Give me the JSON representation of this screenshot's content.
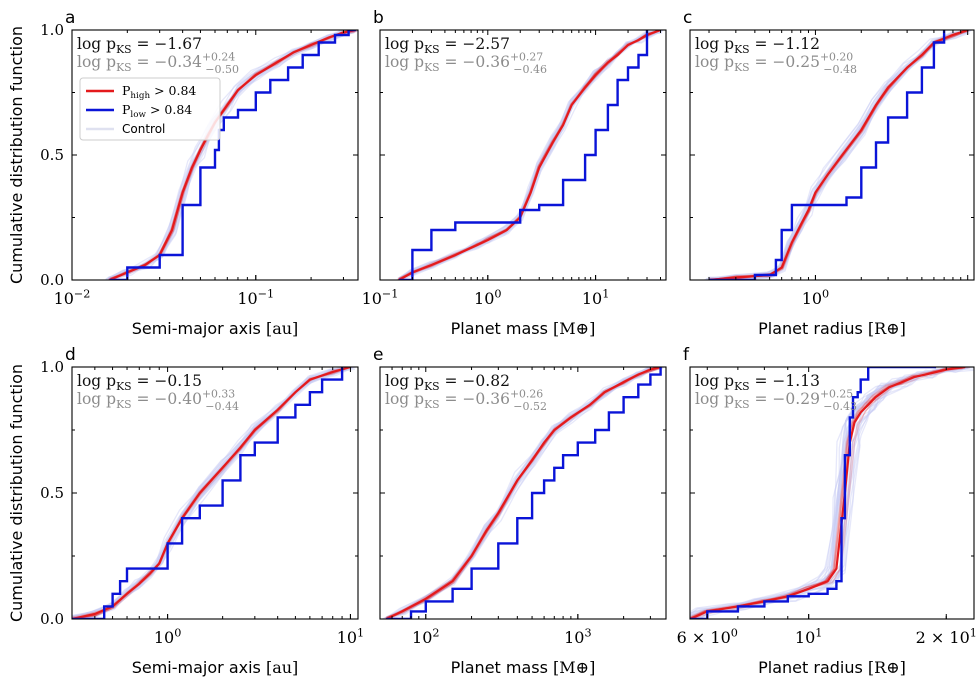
{
  "colors": {
    "high": "#e41a1c",
    "low": "#0a14d8",
    "control": "#c8cdf5",
    "pks_main": "#111111",
    "pks_ctrl": "#8c8c8c"
  },
  "legend": [
    {
      "key": "high",
      "label": "P_high > 0.84"
    },
    {
      "key": "low",
      "label": "P_low > 0.84"
    },
    {
      "key": "control",
      "label": "Control"
    }
  ],
  "chart_data": [
    {
      "panel": "a",
      "type": "line",
      "xscale": "log",
      "xlim": [
        0.01,
        0.36
      ],
      "ylim": [
        0,
        1
      ],
      "xlabel": "Semi-major axis [au]",
      "ylabel": "Cumulative distribution function",
      "xticks": [
        {
          "v": 0.01,
          "label": "10^−2"
        },
        {
          "v": 0.1,
          "label": "10^−1"
        }
      ],
      "yticks": [
        "0.0",
        "0.5",
        "1.0"
      ],
      "annot_main": {
        "label": "log p_KS = ",
        "value": "−1.67"
      },
      "annot_ctrl": {
        "label": "log p_KS = ",
        "value": "−0.34",
        "sup": "+0.24",
        "sub": "−0.50"
      },
      "legend": "upper-left",
      "series": [
        {
          "key": "high",
          "x": [
            0.016,
            0.02,
            0.025,
            0.03,
            0.035,
            0.04,
            0.045,
            0.05,
            0.055,
            0.06,
            0.07,
            0.08,
            0.1,
            0.13,
            0.16,
            0.2,
            0.25,
            0.3,
            0.35
          ],
          "y": [
            0,
            0.03,
            0.06,
            0.1,
            0.2,
            0.35,
            0.45,
            0.52,
            0.58,
            0.63,
            0.7,
            0.76,
            0.82,
            0.87,
            0.91,
            0.94,
            0.97,
            0.99,
            1.0
          ]
        },
        {
          "key": "low",
          "x": [
            0.016,
            0.02,
            0.03,
            0.04,
            0.05,
            0.06,
            0.063,
            0.067,
            0.08,
            0.1,
            0.12,
            0.15,
            0.18,
            0.22,
            0.27,
            0.32,
            0.35
          ],
          "y": [
            0,
            0.05,
            0.1,
            0.3,
            0.45,
            0.52,
            0.6,
            0.65,
            0.68,
            0.75,
            0.8,
            0.85,
            0.9,
            0.95,
            0.98,
            1.0,
            1.0
          ]
        }
      ]
    },
    {
      "panel": "b",
      "type": "line",
      "xscale": "log",
      "xlim": [
        0.1,
        45
      ],
      "ylim": [
        0,
        1
      ],
      "xlabel": "Planet mass [M⊕]",
      "ylabel": "",
      "xticks": [
        {
          "v": 0.1,
          "label": "10^−1"
        },
        {
          "v": 1,
          "label": "10^0"
        },
        {
          "v": 10,
          "label": "10^1"
        }
      ],
      "yticks": [],
      "annot_main": {
        "label": "log p_KS = ",
        "value": "−2.57"
      },
      "annot_ctrl": {
        "label": "log p_KS = ",
        "value": "−0.36",
        "sup": "+0.27",
        "sub": "−0.46"
      },
      "series": [
        {
          "key": "high",
          "x": [
            0.15,
            0.2,
            0.3,
            0.5,
            0.8,
            1.0,
            1.5,
            2.0,
            2.5,
            3.0,
            4.0,
            5.0,
            6.0,
            8.0,
            10,
            13,
            16,
            20,
            25,
            30,
            40
          ],
          "y": [
            0,
            0.03,
            0.06,
            0.1,
            0.14,
            0.16,
            0.2,
            0.25,
            0.35,
            0.45,
            0.55,
            0.62,
            0.7,
            0.77,
            0.82,
            0.87,
            0.9,
            0.94,
            0.96,
            0.98,
            1.0
          ]
        },
        {
          "key": "low",
          "x": [
            0.15,
            0.2,
            0.3,
            0.5,
            1.0,
            1.5,
            2.0,
            3.0,
            5.0,
            8.0,
            10,
            13,
            16,
            20,
            25,
            30
          ],
          "y": [
            0,
            0.12,
            0.2,
            0.23,
            0.23,
            0.23,
            0.28,
            0.3,
            0.4,
            0.5,
            0.6,
            0.7,
            0.8,
            0.85,
            0.9,
            1.0
          ]
        }
      ]
    },
    {
      "panel": "c",
      "type": "line",
      "xscale": "log",
      "xlim": [
        0.15,
        11
      ],
      "ylim": [
        0,
        1
      ],
      "xlabel": "Planet radius [R⊕]",
      "ylabel": "",
      "xticks": [
        {
          "v": 1,
          "label": "10^0"
        }
      ],
      "yticks": [],
      "annot_main": {
        "label": "log p_KS = ",
        "value": "−1.12"
      },
      "annot_ctrl": {
        "label": "log p_KS = ",
        "value": "−0.25",
        "sup": "+0.20",
        "sub": "−0.48"
      },
      "series": [
        {
          "key": "high",
          "x": [
            0.2,
            0.3,
            0.5,
            0.6,
            0.7,
            0.8,
            0.9,
            1.0,
            1.2,
            1.5,
            2.0,
            2.5,
            3.0,
            4.0,
            5.0,
            6.0,
            8.0,
            10
          ],
          "y": [
            0,
            0.01,
            0.02,
            0.05,
            0.15,
            0.22,
            0.28,
            0.35,
            0.42,
            0.5,
            0.6,
            0.7,
            0.77,
            0.85,
            0.9,
            0.95,
            0.98,
            1.0
          ]
        },
        {
          "key": "low",
          "x": [
            0.2,
            0.4,
            0.55,
            0.6,
            0.7,
            0.8,
            1.0,
            1.3,
            1.6,
            2.0,
            2.5,
            3.0,
            4.0,
            5.0,
            6.0,
            7.0
          ],
          "y": [
            0,
            0.02,
            0.08,
            0.2,
            0.3,
            0.3,
            0.3,
            0.3,
            0.33,
            0.45,
            0.55,
            0.65,
            0.75,
            0.85,
            0.95,
            1.0
          ]
        }
      ]
    },
    {
      "panel": "d",
      "type": "line",
      "xscale": "log",
      "xlim": [
        0.3,
        11
      ],
      "ylim": [
        0,
        1
      ],
      "xlabel": "Semi-major axis [au]",
      "ylabel": "Cumulative distribution function",
      "xticks": [
        {
          "v": 1,
          "label": "10^0"
        },
        {
          "v": 10,
          "label": "10^1"
        }
      ],
      "yticks": [
        "0.0",
        "0.5",
        "1.0"
      ],
      "annot_main": {
        "label": "log p_KS = ",
        "value": "−0.15"
      },
      "annot_ctrl": {
        "label": "log p_KS = ",
        "value": "−0.40",
        "sup": "+0.33",
        "sub": "−0.44"
      },
      "series": [
        {
          "key": "high",
          "x": [
            0.3,
            0.4,
            0.5,
            0.6,
            0.7,
            0.8,
            0.9,
            1.0,
            1.2,
            1.5,
            2.0,
            2.5,
            3.0,
            4.0,
            5.0,
            6.0,
            8.0,
            10
          ],
          "y": [
            0,
            0.02,
            0.05,
            0.1,
            0.14,
            0.18,
            0.22,
            0.3,
            0.4,
            0.5,
            0.6,
            0.68,
            0.75,
            0.83,
            0.9,
            0.95,
            0.98,
            1.0
          ]
        },
        {
          "key": "low",
          "x": [
            0.3,
            0.45,
            0.5,
            0.55,
            0.6,
            0.65,
            0.9,
            1.0,
            1.2,
            1.5,
            2.0,
            2.5,
            3.0,
            4.0,
            5.0,
            6.0,
            7.0,
            9.0
          ],
          "y": [
            0,
            0.05,
            0.1,
            0.15,
            0.2,
            0.2,
            0.2,
            0.3,
            0.4,
            0.45,
            0.55,
            0.65,
            0.7,
            0.8,
            0.85,
            0.9,
            0.95,
            1.0
          ]
        }
      ]
    },
    {
      "panel": "e",
      "type": "line",
      "xscale": "log",
      "xlim": [
        50,
        3800
      ],
      "ylim": [
        0,
        1
      ],
      "xlabel": "Planet mass [M⊕]",
      "ylabel": "",
      "xticks": [
        {
          "v": 100,
          "label": "10^2"
        },
        {
          "v": 1000,
          "label": "10^3"
        }
      ],
      "yticks": [],
      "annot_main": {
        "label": "log p_KS = ",
        "value": "−0.82"
      },
      "annot_ctrl": {
        "label": "log p_KS = ",
        "value": "−0.36",
        "sup": "+0.26",
        "sub": "−0.52"
      },
      "series": [
        {
          "key": "high",
          "x": [
            55,
            70,
            100,
            150,
            200,
            250,
            300,
            400,
            500,
            600,
            700,
            900,
            1200,
            1500,
            2000,
            2500,
            3000,
            3500
          ],
          "y": [
            0,
            0.03,
            0.08,
            0.15,
            0.25,
            0.35,
            0.42,
            0.55,
            0.63,
            0.7,
            0.75,
            0.8,
            0.85,
            0.9,
            0.94,
            0.97,
            0.99,
            1.0
          ]
        },
        {
          "key": "low",
          "x": [
            55,
            80,
            100,
            150,
            200,
            300,
            400,
            500,
            600,
            700,
            800,
            1000,
            1300,
            1600,
            2000,
            2500,
            3000,
            3500
          ],
          "y": [
            0,
            0.03,
            0.07,
            0.12,
            0.2,
            0.3,
            0.4,
            0.5,
            0.55,
            0.6,
            0.65,
            0.7,
            0.75,
            0.82,
            0.88,
            0.93,
            0.97,
            1.0
          ]
        }
      ]
    },
    {
      "panel": "f",
      "type": "line",
      "xscale": "log",
      "xlim": [
        5.5,
        23
      ],
      "ylim": [
        0,
        1
      ],
      "xlabel": "Planet radius [R⊕]",
      "ylabel": "",
      "xticks": [
        {
          "v": 6,
          "label": "6 × 10^0"
        },
        {
          "v": 10,
          "label": "10^1"
        },
        {
          "v": 20,
          "label": "2 × 10^1"
        }
      ],
      "yticks": [],
      "annot_main": {
        "label": "log p_KS = ",
        "value": "−1.13"
      },
      "annot_ctrl": {
        "label": "log p_KS = ",
        "value": "−0.29",
        "sup": "+0.25",
        "sub": "−0.43"
      },
      "series": [
        {
          "key": "high",
          "x": [
            5.5,
            6,
            7,
            8,
            9,
            10,
            11,
            11.5,
            12,
            12.3,
            12.6,
            13,
            13.5,
            14,
            15,
            16,
            17,
            18,
            19,
            20,
            22
          ],
          "y": [
            0,
            0.03,
            0.05,
            0.07,
            0.09,
            0.12,
            0.15,
            0.2,
            0.5,
            0.7,
            0.78,
            0.82,
            0.85,
            0.88,
            0.92,
            0.94,
            0.96,
            0.97,
            0.98,
            0.99,
            1.0
          ]
        },
        {
          "key": "low",
          "x": [
            5.5,
            6,
            7,
            8,
            9,
            10,
            11,
            11.5,
            11.8,
            12,
            12.3,
            12.5,
            12.8,
            13,
            13.5,
            14,
            15,
            16,
            17,
            18,
            19
          ],
          "y": [
            0,
            0.03,
            0.05,
            0.07,
            0.09,
            0.1,
            0.12,
            0.15,
            0.4,
            0.65,
            0.8,
            0.88,
            0.9,
            0.95,
            1.0,
            1.0,
            1.0,
            1.0,
            1.0,
            1.0,
            1.0
          ]
        }
      ]
    }
  ]
}
